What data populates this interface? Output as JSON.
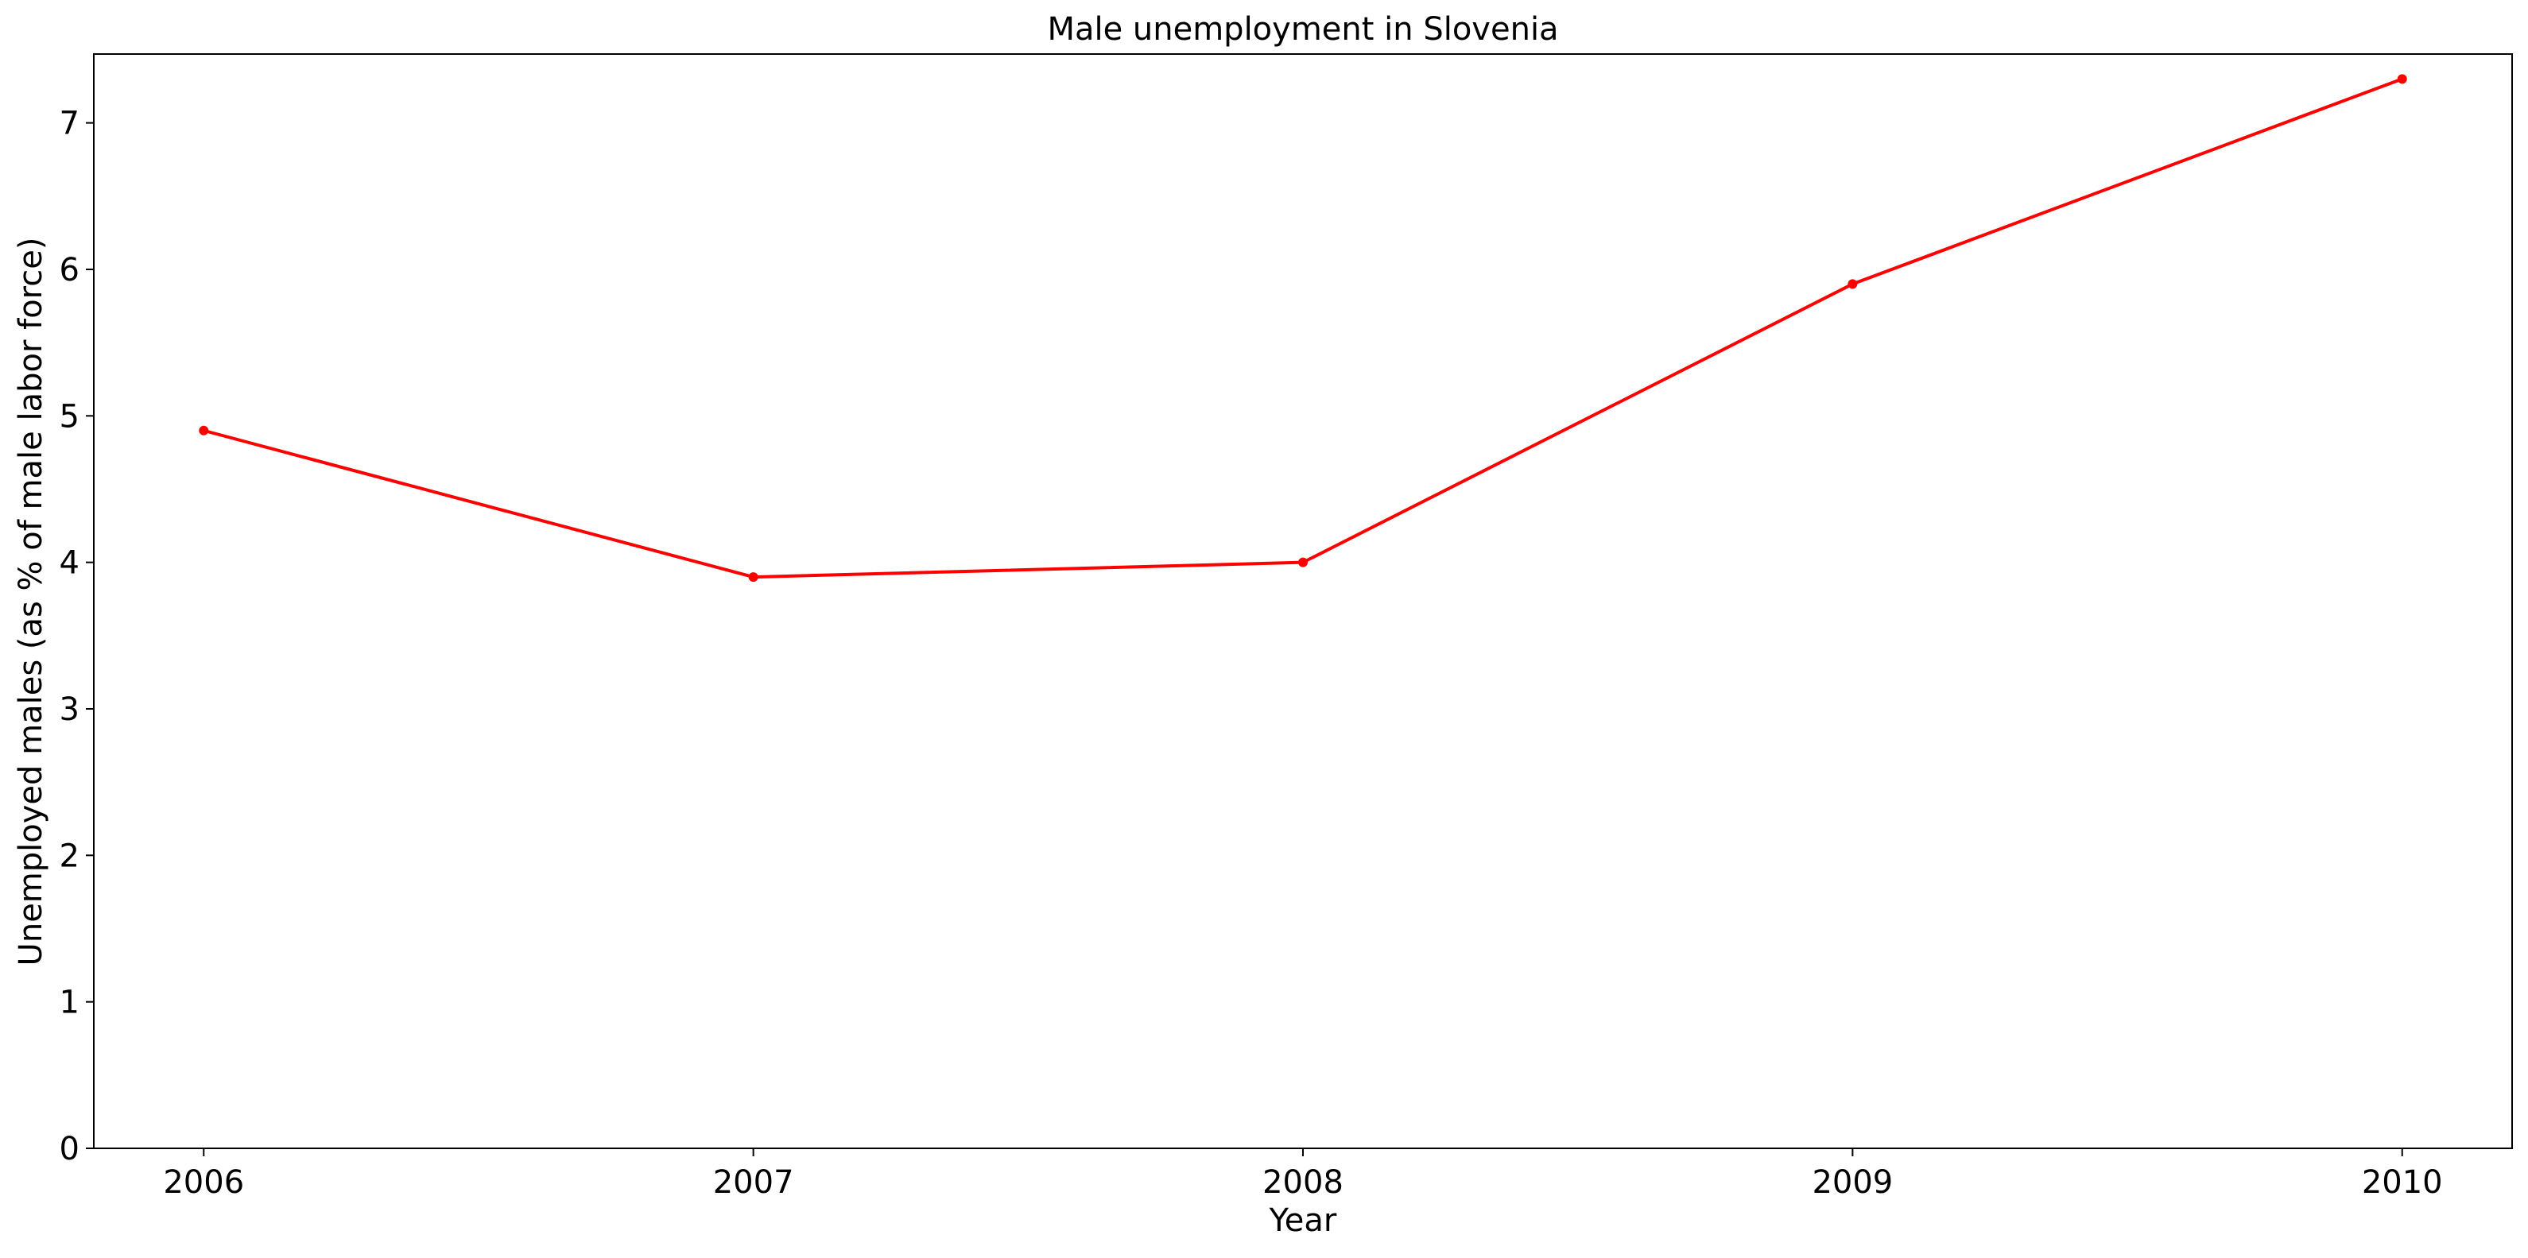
{
  "chart_data": {
    "type": "line",
    "title": "Male unemployment in Slovenia",
    "xlabel": "Year",
    "ylabel": "Unemployed males (as % of male labor force)",
    "x": [
      2006,
      2007,
      2008,
      2009,
      2010
    ],
    "x_tick_labels": [
      "2006",
      "2007",
      "2008",
      "2009",
      "2010"
    ],
    "y_ticks": [
      0,
      1,
      2,
      3,
      4,
      5,
      6,
      7
    ],
    "y_tick_labels": [
      "0",
      "1",
      "2",
      "3",
      "4",
      "5",
      "6",
      "7"
    ],
    "xlim": [
      2005.8,
      2010.2
    ],
    "ylim": [
      0,
      7.47
    ],
    "grid": false,
    "legend": false,
    "series": [
      {
        "values": [
          4.9,
          3.9,
          4.0,
          5.9,
          7.3
        ],
        "color": "#ff0000",
        "marker": "circle"
      }
    ]
  }
}
